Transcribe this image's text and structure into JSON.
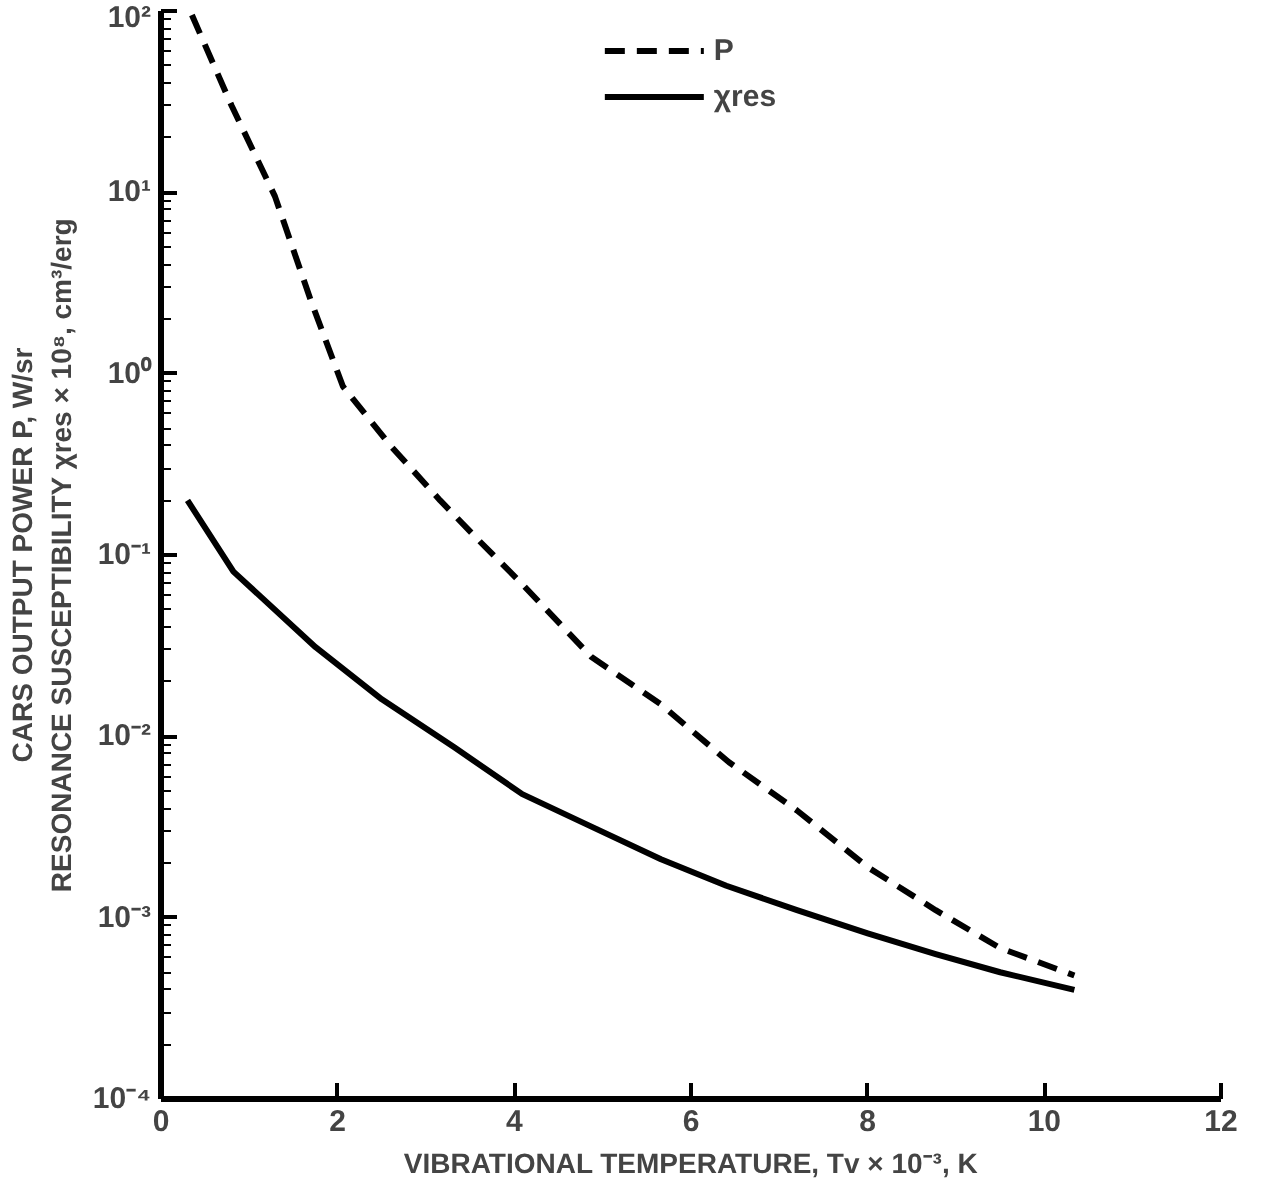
{
  "chart_data": {
    "type": "line",
    "xlabel": "VIBRATIONAL TEMPERATURE, Tv × 10⁻³, K",
    "ylabel": "CARS OUTPUT POWER P, W/sr\nRESONANCE SUSCEPTIBILITY χres × 10⁸, cm³/erg",
    "log": "y",
    "grid": false,
    "legend": "top",
    "marker": "none",
    "xlim": [
      0,
      12
    ],
    "xticks": [
      0,
      2,
      4,
      6,
      8,
      10,
      12
    ],
    "ylim": [
      0.0001,
      100
    ],
    "yticks": [
      {
        "value": 0.0001,
        "label": "10⁻⁴"
      },
      {
        "value": 0.001,
        "label": "10⁻³"
      },
      {
        "value": 0.01,
        "label": "10⁻²"
      },
      {
        "value": 0.1,
        "label": "10⁻¹"
      },
      {
        "value": 1,
        "label": "10⁰"
      },
      {
        "value": 10,
        "label": "10¹"
      },
      {
        "value": 100,
        "label": "10²"
      }
    ],
    "series": [
      {
        "name": "P",
        "color": "#000000",
        "line_style": "dashed",
        "x": [
          0.35,
          0.8,
          1.29,
          1.7,
          2.06,
          2.6,
          3.16,
          3.6,
          4.09,
          4.87,
          5.66,
          6.43,
          7.2,
          8.0,
          8.77,
          9.5,
          10.34
        ],
        "values": [
          95,
          30,
          9.5,
          2.5,
          0.85,
          0.4,
          0.2,
          0.12,
          0.069,
          0.0275,
          0.015,
          0.0072,
          0.0039,
          0.0019,
          0.0011,
          0.00068,
          0.00048
        ]
      },
      {
        "name": "χres",
        "color": "#000000",
        "line_style": "solid",
        "x": [
          0.3,
          0.82,
          1.75,
          2.5,
          3.32,
          4.09,
          4.8,
          5.66,
          6.4,
          7.2,
          8.0,
          8.77,
          9.5,
          10.34
        ],
        "values": [
          0.2,
          0.081,
          0.031,
          0.016,
          0.0087,
          0.0048,
          0.0033,
          0.0021,
          0.0015,
          0.0011,
          0.00082,
          0.00063,
          0.0005,
          0.0004
        ]
      }
    ]
  }
}
